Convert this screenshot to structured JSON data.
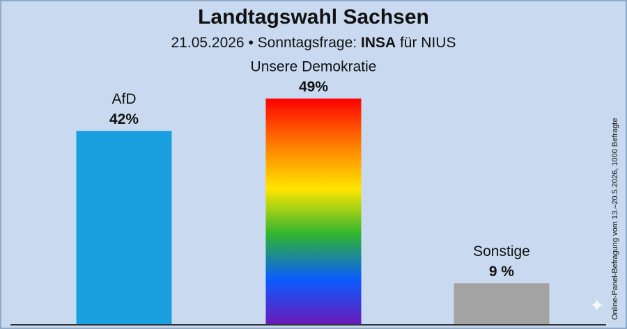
{
  "title": "Landtagswahl Sachsen",
  "subtitle": {
    "date": "21.05.2026",
    "separator": "•",
    "label": "Sonntagsfrage:",
    "institute": "INSA",
    "client": "für NIUS"
  },
  "source_note": "Online-Panel-Befragung vom 13.–20.5.2026, 1000 Befragte",
  "colors": {
    "background": "#c9daf0",
    "afd": "#1aa0e0",
    "sonstige": "#a3a3a3",
    "rainbow": [
      "#ff0000",
      "#ff7a00",
      "#ffe600",
      "#2fb52f",
      "#0a5cff",
      "#6a1bb8"
    ]
  },
  "chart_data": {
    "type": "bar",
    "categories": [
      "AfD",
      "Unsere Demokratie",
      "Sonstige"
    ],
    "values": [
      42,
      49,
      9
    ],
    "value_labels": [
      "42%",
      "49%",
      "9 %"
    ],
    "bar_fills": [
      "solid-blue",
      "rainbow-gradient",
      "solid-gray"
    ],
    "ylim": [
      0,
      100
    ],
    "grid": false,
    "legend": "none"
  }
}
